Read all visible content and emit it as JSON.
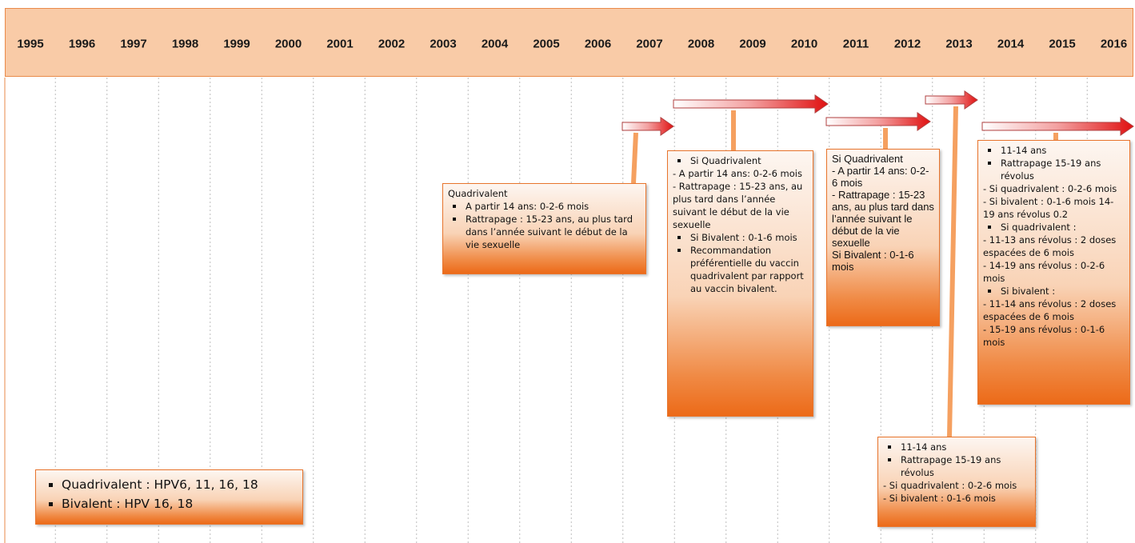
{
  "years": [
    "1995",
    "1996",
    "1997",
    "1998",
    "1999",
    "2000",
    "2001",
    "2002",
    "2003",
    "2004",
    "2005",
    "2006",
    "2007",
    "2008",
    "2009",
    "2010",
    "2011",
    "2012",
    "2013",
    "2014",
    "2015",
    "2016"
  ],
  "boxes": [
    {
      "lines": [
        {
          "text": "Quadrivalent",
          "bullet": false
        },
        {
          "text": "A partir 14 ans: 0-2-6 mois",
          "bullet": true
        },
        {
          "text": "Rattrapage : 15-23 ans, au plus tard dans l’année suivant le début de la vie sexuelle",
          "bullet": true
        }
      ]
    },
    {
      "lines": [
        {
          "text": "Si Quadrivalent",
          "bullet": true
        },
        {
          "text": "- A partir 14 ans: 0-2-6 mois",
          "bullet": false
        },
        {
          "text": "- Rattrapage : 15-23 ans, au plus tard dans l’année suivant le début de la vie sexuelle",
          "bullet": false
        },
        {
          "text": "Si Bivalent : 0-1-6 mois",
          "bullet": true
        },
        {
          "text": "Recommandation préférentielle du vaccin quadrivalent par rapport au vaccin bivalent.",
          "bullet": true
        }
      ]
    },
    {
      "lines": [
        {
          "text": "Si Quadrivalent",
          "bullet": false
        },
        {
          "text": "- A partir 14 ans: 0-2-6 mois",
          "bullet": false
        },
        {
          "text": "- Rattrapage : 15-23 ans, au plus tard dans l’année suivant le début de la vie sexuelle",
          "bullet": false
        },
        {
          "text": "Si Bivalent : 0-1-6 mois",
          "bullet": false
        }
      ]
    },
    {
      "lines": [
        {
          "text": "11-14 ans",
          "bullet": true
        },
        {
          "text": "Rattrapage 15-19 ans révolus",
          "bullet": true
        },
        {
          "text": "- Si quadrivalent : 0-2-6 mois",
          "bullet": false
        },
        {
          "text": "- Si bivalent : 0-1-6 mois 14-19 ans révolus 0.2",
          "bullet": false
        },
        {
          "text": "Si quadrivalent :",
          "bullet": true
        },
        {
          "text": "- 11-13 ans révolus : 2 doses espacées de 6 mois",
          "bullet": false
        },
        {
          "text": "- 14-19 ans révolus : 0-2-6 mois",
          "bullet": false
        },
        {
          "text": "Si bivalent :",
          "bullet": true
        },
        {
          "text": "- 11-14 ans révolus : 2 doses espacées de 6 mois",
          "bullet": false
        },
        {
          "text": "- 15-19 ans révolus : 0-1-6 mois",
          "bullet": false
        }
      ]
    },
    {
      "lines": [
        {
          "text": "11-14 ans",
          "bullet": true
        },
        {
          "text": "Rattrapage 15-19 ans révolus",
          "bullet": true
        },
        {
          "text": "- Si quadrivalent : 0-2-6 mois",
          "bullet": false
        },
        {
          "text": "- Si bivalent : 0-1-6 mois",
          "bullet": false
        }
      ]
    },
    {
      "lines": [
        {
          "text": "Quadrivalent : HPV6, 11, 16, 18",
          "bullet": true
        },
        {
          "text": "Bivalent : HPV 16, 18",
          "bullet": true
        }
      ]
    }
  ]
}
